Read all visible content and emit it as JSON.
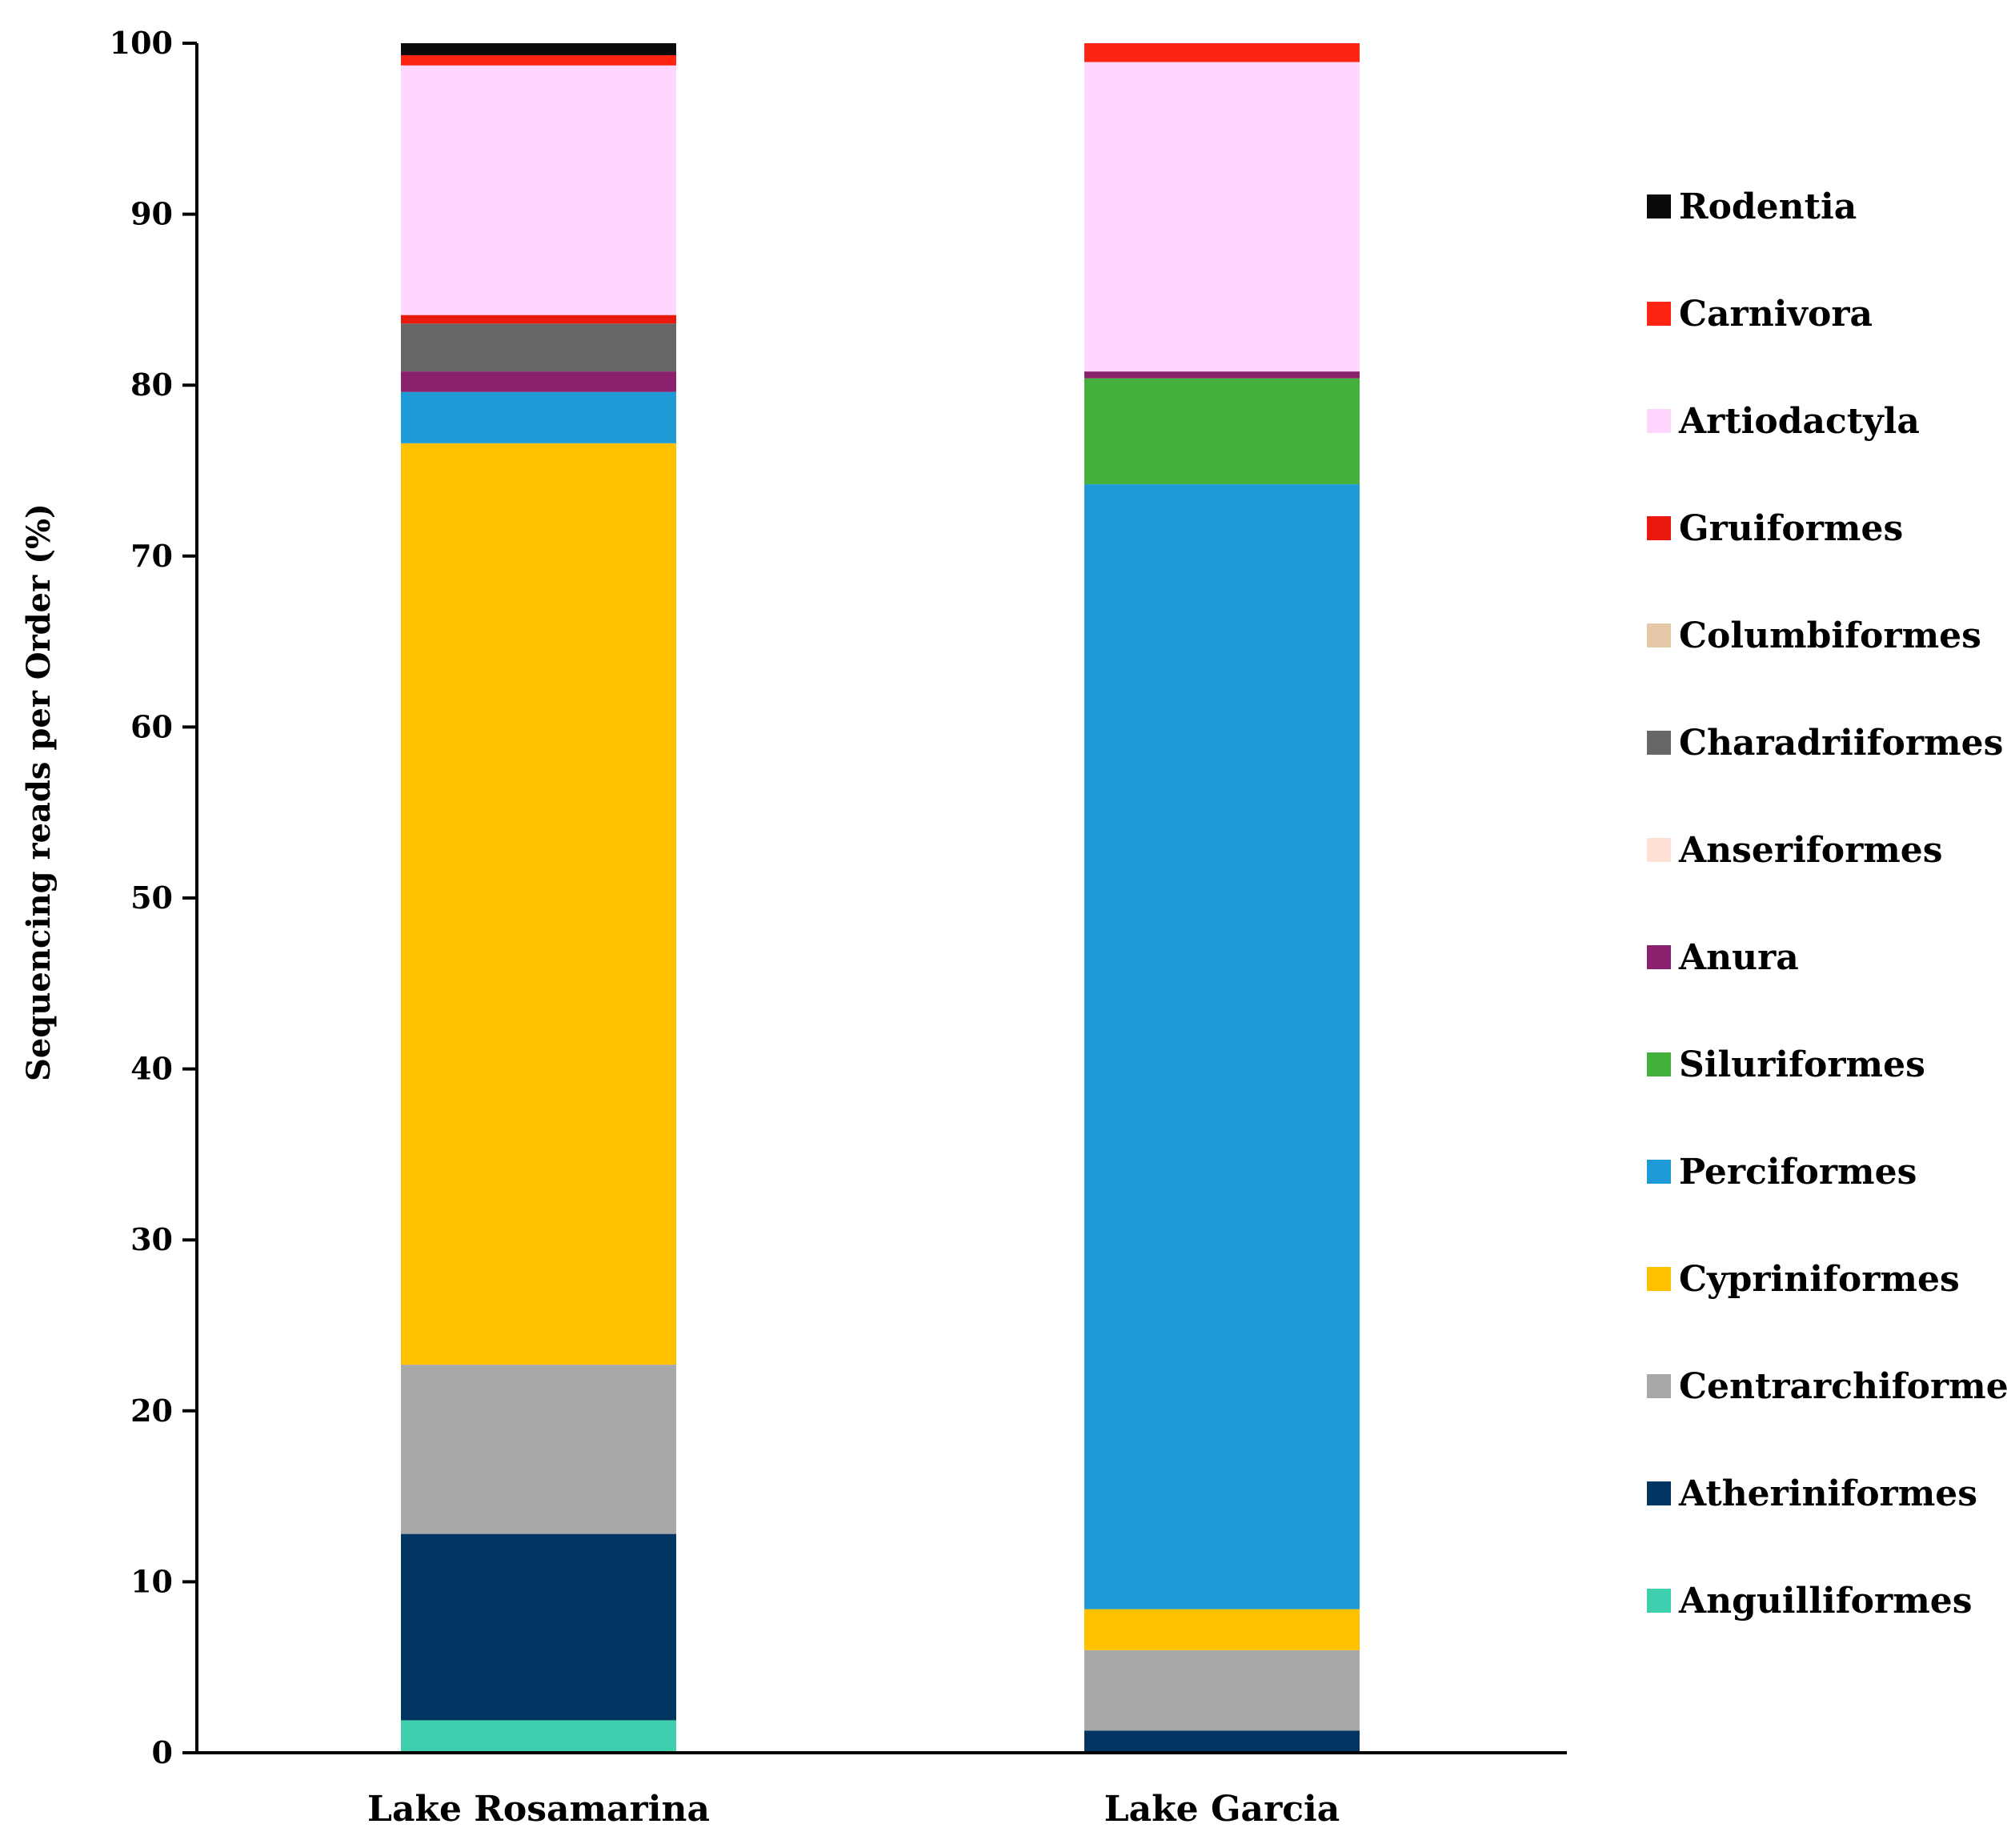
{
  "chart_data": {
    "type": "bar",
    "stacked": true,
    "title": "",
    "xlabel": "",
    "ylabel": "Sequencing reads per Order  (%)",
    "ylim": [
      0,
      100
    ],
    "yticks": [
      0,
      10,
      20,
      30,
      40,
      50,
      60,
      70,
      80,
      90,
      100
    ],
    "grid": false,
    "legend_position": "right",
    "categories": [
      "Lake Rosamarina",
      "Lake Garcia"
    ],
    "series": [
      {
        "name": "Anguilliformes",
        "color": "#3ECFAE",
        "values": [
          1.9,
          0.0
        ]
      },
      {
        "name": "Atheriniformes",
        "color": "#033563",
        "values": [
          10.9,
          1.3
        ]
      },
      {
        "name": "Centrarchiformes",
        "color": "#A8A8A8",
        "values": [
          9.9,
          4.7
        ]
      },
      {
        "name": "Cypriniformes",
        "color": "#FFC000",
        "values": [
          53.9,
          2.4
        ]
      },
      {
        "name": "Perciformes",
        "color": "#1E9AD7",
        "values": [
          3.0,
          65.8
        ]
      },
      {
        "name": "Siluriformes",
        "color": "#43B13B",
        "values": [
          0.0,
          6.2
        ]
      },
      {
        "name": "Anura",
        "color": "#8A206E",
        "values": [
          1.2,
          0.4
        ]
      },
      {
        "name": "Anseriformes",
        "color": "#FFE1D6",
        "values": [
          0.0,
          0.0
        ]
      },
      {
        "name": "Charadriiformes",
        "color": "#666666",
        "values": [
          2.8,
          0.0
        ]
      },
      {
        "name": "Columbiformes",
        "color": "#E4C8A8",
        "values": [
          0.0,
          0.0
        ]
      },
      {
        "name": "Gruiformes",
        "color": "#E8180C",
        "values": [
          0.5,
          0.0
        ]
      },
      {
        "name": "Artiodactyla",
        "color": "#FFD6FE",
        "values": [
          14.6,
          18.1
        ]
      },
      {
        "name": "Carnivora",
        "color": "#FF2311",
        "values": [
          0.6,
          1.1
        ]
      },
      {
        "name": "Rodentia",
        "color": "#0A0A0A",
        "values": [
          0.7,
          0.0
        ]
      }
    ],
    "legend_order": [
      "Rodentia",
      "Carnivora",
      "Artiodactyla",
      "Gruiformes",
      "Columbiformes",
      "Charadriiformes",
      "Anseriformes",
      "Anura",
      "Siluriformes",
      "Perciformes",
      "Cypriniformes",
      "Centrarchiformes",
      "Atheriniformes",
      "Anguilliformes"
    ]
  }
}
